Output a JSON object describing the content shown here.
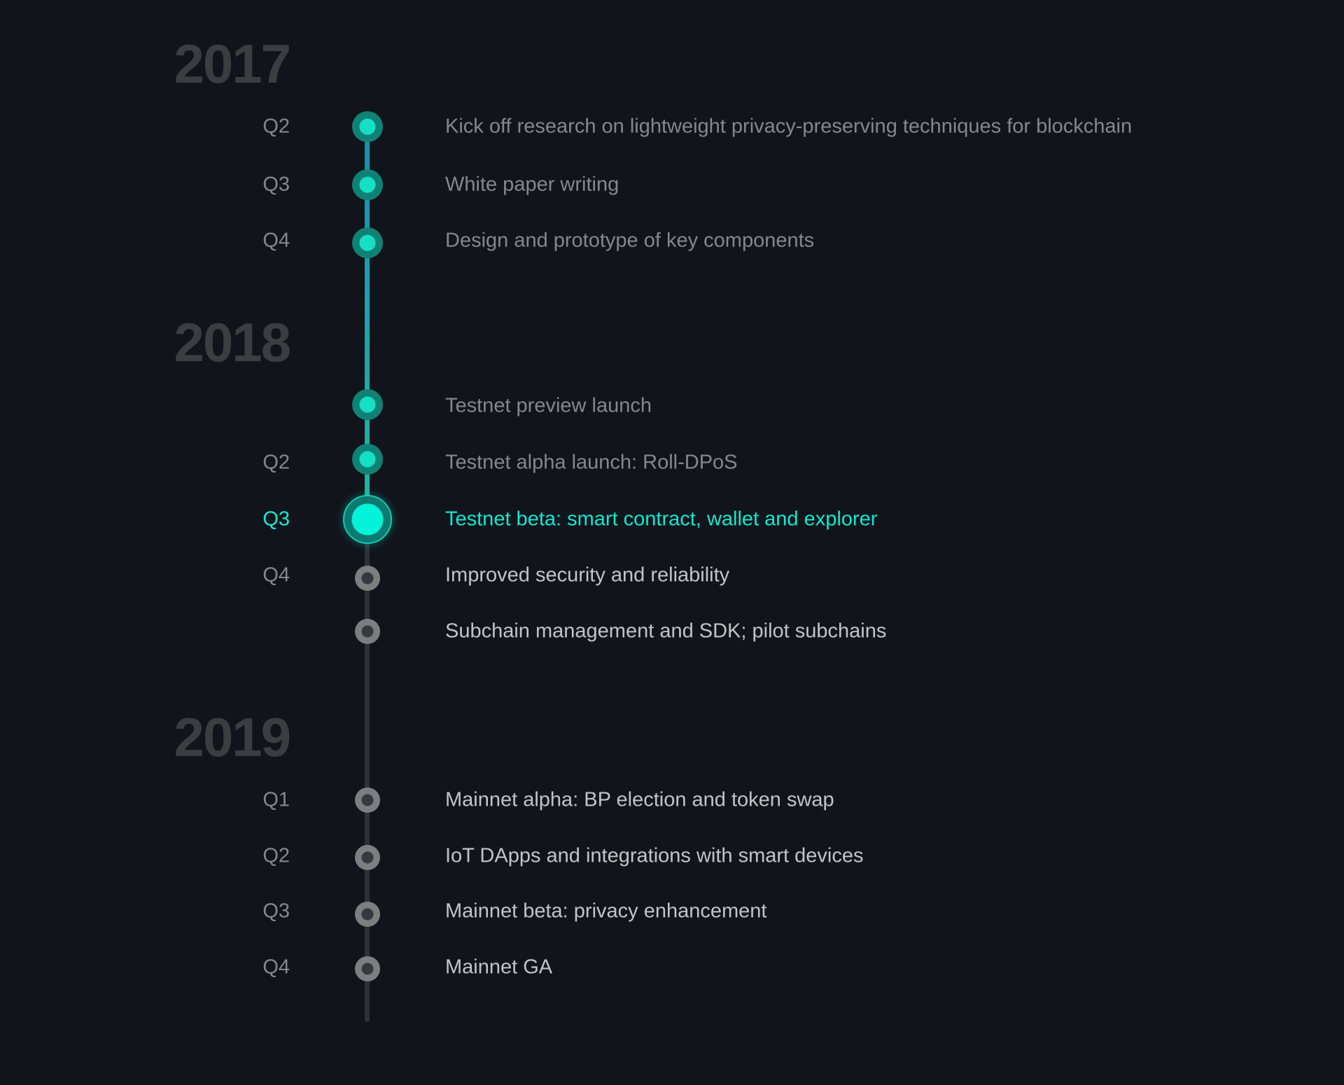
{
  "accent_color": "#00f2d9",
  "background_color": "#11151b",
  "years": [
    {
      "label": "2017",
      "items": [
        {
          "quarter": "Q2",
          "text": "Kick off research on lightweight privacy-preserving techniques for blockchain",
          "state": "done"
        },
        {
          "quarter": "Q3",
          "text": "White paper writing",
          "state": "done"
        },
        {
          "quarter": "Q4",
          "text": "Design and prototype of key components",
          "state": "done"
        }
      ]
    },
    {
      "label": "2018",
      "items": [
        {
          "quarter": "",
          "text": "Testnet preview launch",
          "state": "done"
        },
        {
          "quarter": "Q2",
          "text": "Testnet alpha launch: Roll-DPoS",
          "state": "done"
        },
        {
          "quarter": "Q3",
          "text": "Testnet beta: smart contract, wallet and explorer",
          "state": "current"
        },
        {
          "quarter": "Q4",
          "text": "Improved security and reliability",
          "state": "future"
        },
        {
          "quarter": "",
          "text": "Subchain management and SDK; pilot subchains",
          "state": "future"
        }
      ]
    },
    {
      "label": "2019",
      "items": [
        {
          "quarter": "Q1",
          "text": "Mainnet alpha: BP election and token swap",
          "state": "future"
        },
        {
          "quarter": "Q2",
          "text": "IoT DApps and integrations with smart devices",
          "state": "future"
        },
        {
          "quarter": "Q3",
          "text": "Mainnet beta: privacy enhancement",
          "state": "future"
        },
        {
          "quarter": "Q4",
          "text": "Mainnet GA",
          "state": "future"
        }
      ]
    }
  ]
}
